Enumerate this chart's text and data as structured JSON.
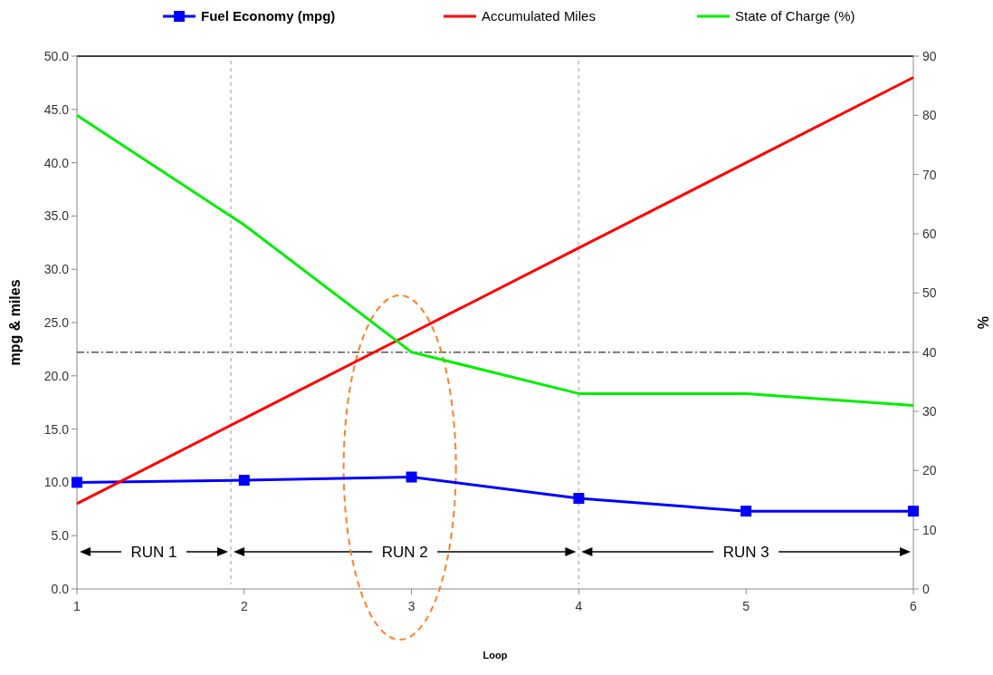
{
  "chart_data": {
    "type": "line",
    "xlabel": "Loop",
    "ylabel": "mpg & miles",
    "y2label": "%",
    "x": [
      1,
      2,
      3,
      4,
      5,
      6
    ],
    "xlim": [
      1,
      6
    ],
    "xticks": [
      1,
      2,
      3,
      4,
      5,
      6
    ],
    "ylim": [
      0,
      50
    ],
    "yticks": [
      {
        "value": 0,
        "label": "0.0"
      },
      {
        "value": 5,
        "label": "5.0"
      },
      {
        "value": 10,
        "label": "10.0"
      },
      {
        "value": 15,
        "label": "15.0"
      },
      {
        "value": 20,
        "label": "20.0"
      },
      {
        "value": 25,
        "label": "25.0"
      },
      {
        "value": 30,
        "label": "30.0"
      },
      {
        "value": 35,
        "label": "35.0"
      },
      {
        "value": 40,
        "label": "40.0"
      },
      {
        "value": 45,
        "label": "45.0"
      },
      {
        "value": 50,
        "label": "50.0"
      }
    ],
    "y2lim": [
      0,
      90
    ],
    "y2ticks": [
      0,
      10,
      20,
      30,
      40,
      50,
      60,
      70,
      80,
      90
    ],
    "series": [
      {
        "name": "Fuel Economy (mpg)",
        "color": "#0000ff",
        "marker": "square",
        "values": [
          10.0,
          10.2,
          10.5,
          8.5,
          7.3,
          7.3
        ]
      },
      {
        "name": "Accumulated Miles",
        "color": "#ff0000",
        "marker": "none",
        "values": [
          8.0,
          16.0,
          24.0,
          32.0,
          40.0,
          48.0
        ]
      },
      {
        "name": "State of Charge (%)",
        "color": "#00ee00",
        "marker": "none",
        "axis": "y2",
        "values": [
          80,
          61.5,
          40,
          33,
          33,
          31
        ]
      }
    ],
    "ref_lines": [
      {
        "axis": "x",
        "value": 1.92,
        "color": "#bbbbbb",
        "line_style": "dashed"
      },
      {
        "axis": "x",
        "value": 4,
        "color": "#bbbbbb",
        "line_style": "dashed"
      },
      {
        "axis": "y2",
        "value": 40,
        "color": "#555555",
        "line_style": "dashdot"
      }
    ],
    "annotations": [
      "RUN 1",
      "RUN 2",
      "RUN 3"
    ],
    "grid": false,
    "legend": "top"
  }
}
